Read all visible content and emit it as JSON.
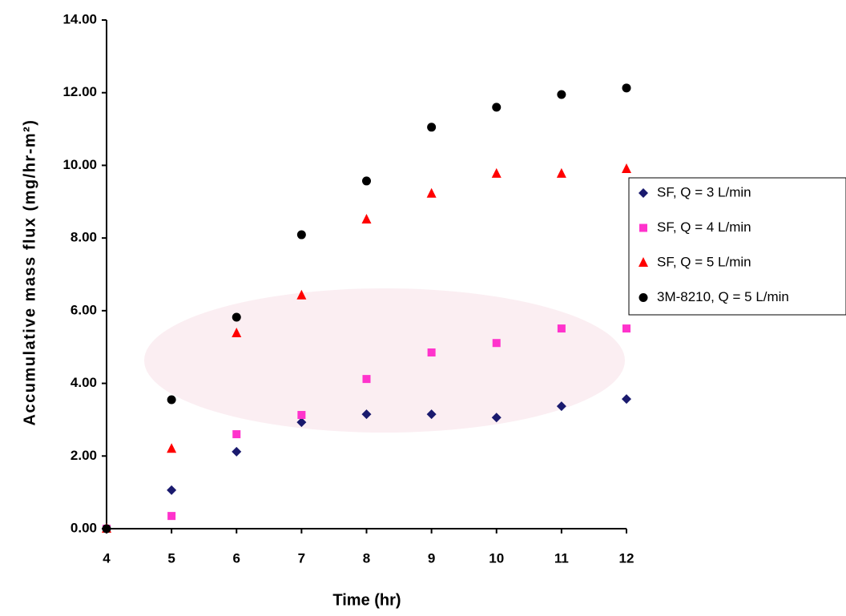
{
  "chart_data": {
    "type": "scatter",
    "xlabel": "Time (hr)",
    "ylabel": "Accumulative mass flux (mg/hr-m²)",
    "xlim": [
      4,
      12
    ],
    "xticks": [
      4,
      5,
      6,
      7,
      8,
      9,
      10,
      11,
      12
    ],
    "ylim": [
      0,
      14
    ],
    "yticks": [
      {
        "value": 0,
        "label": "0.00"
      },
      {
        "value": 2,
        "label": "2.00"
      },
      {
        "value": 4,
        "label": "4.00"
      },
      {
        "value": 6,
        "label": "6.00"
      },
      {
        "value": 8,
        "label": "8.00"
      },
      {
        "value": 10,
        "label": "10.00"
      },
      {
        "value": 12,
        "label": "12.00"
      },
      {
        "value": 14,
        "label": "14.00"
      }
    ],
    "grid": false,
    "legend": "right",
    "series": [
      {
        "name": "SF, Q = 3 L/min",
        "color": "#1a1a6e",
        "marker": "diamond",
        "x": [
          4,
          5,
          6,
          7,
          8,
          9,
          10,
          11,
          12
        ],
        "values": [
          0,
          1.06,
          2.12,
          2.93,
          3.15,
          3.15,
          3.06,
          3.37,
          3.57
        ]
      },
      {
        "name": "SF, Q = 4 L/min",
        "color": "#ff33cc",
        "marker": "square",
        "x": [
          4,
          5,
          6,
          7,
          8,
          9,
          10,
          11,
          12
        ],
        "values": [
          0,
          0.35,
          2.6,
          3.13,
          4.12,
          4.85,
          5.11,
          5.51,
          5.51
        ]
      },
      {
        "name": "SF, Q = 5 L/min",
        "color": "#ff0000",
        "marker": "triangle",
        "x": [
          4,
          5,
          6,
          7,
          8,
          9,
          10,
          11,
          12
        ],
        "values": [
          0,
          2.2,
          5.38,
          6.42,
          8.51,
          9.22,
          9.77,
          9.77,
          9.9
        ]
      },
      {
        "name": "3M-8210, Q = 5 L/min",
        "color": "#000000",
        "marker": "circle",
        "x": [
          4,
          5,
          6,
          7,
          8,
          9,
          10,
          11,
          12
        ],
        "values": [
          0,
          3.55,
          5.82,
          8.09,
          9.57,
          11.05,
          11.6,
          11.95,
          12.13
        ]
      }
    ]
  }
}
